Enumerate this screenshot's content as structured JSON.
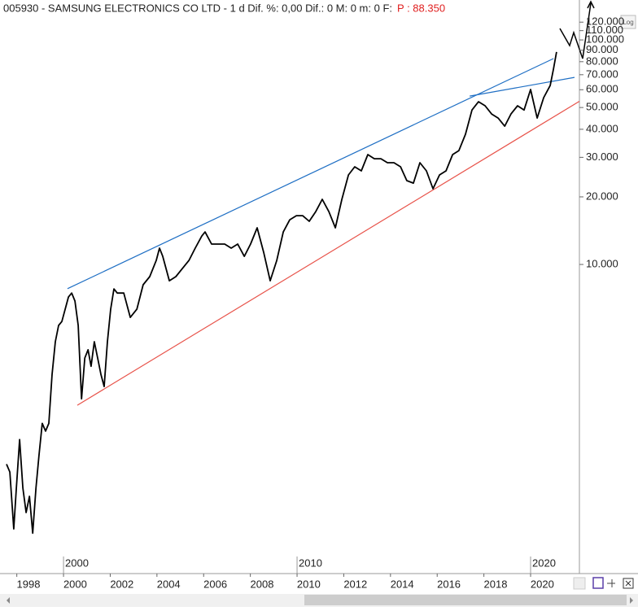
{
  "header": {
    "title": "005930 - SAMSUNG ELECTRONICS CO LTD -  1 d Dif. %: 0,00 Dif.: 0 M: 0 m: 0 F:",
    "price_label": "P : 88.350",
    "log_button": "Log"
  },
  "chart_data": {
    "type": "line",
    "log_scale": true,
    "grid": false,
    "xlim": [
      1997.28,
      2022.09
    ],
    "ylim": [
      420,
      150600
    ],
    "xticks": [
      1998,
      2000,
      2002,
      2004,
      2006,
      2008,
      2010,
      2012,
      2014,
      2016,
      2018,
      2020
    ],
    "decade_ticks": [
      2000,
      2010,
      2020
    ],
    "yticks": [
      {
        "value": 10000,
        "label": "10.000"
      },
      {
        "value": 20000,
        "label": "20.000"
      },
      {
        "value": 30000,
        "label": "30.000"
      },
      {
        "value": 40000,
        "label": "40.000"
      },
      {
        "value": 50000,
        "label": "50.000"
      },
      {
        "value": 60000,
        "label": "60.000"
      },
      {
        "value": 70000,
        "label": "70.000"
      },
      {
        "value": 80000,
        "label": "80.000"
      },
      {
        "value": 90000,
        "label": "90.000"
      },
      {
        "value": 100000,
        "label": "100.000"
      },
      {
        "value": 110000,
        "label": "110.000"
      },
      {
        "value": 120000,
        "label": "120.000"
      }
    ],
    "series": [
      {
        "color": "#000000",
        "x": [
          1997.56,
          1997.7,
          1997.87,
          1997.98,
          1998.12,
          1998.26,
          1998.4,
          1998.54,
          1998.68,
          1998.82,
          1998.95,
          1999.09,
          1999.23,
          1999.37,
          1999.51,
          1999.65,
          1999.79,
          1999.93,
          2000.07,
          2000.21,
          2000.35,
          2000.49,
          2000.63,
          2000.77,
          2000.91,
          2001.05,
          2001.18,
          2001.32,
          2001.46,
          2001.6,
          2001.74,
          2001.88,
          2002.02,
          2002.16,
          2002.3,
          2002.58,
          2002.86,
          2003.14,
          2003.41,
          2003.69,
          2003.97,
          2004.11,
          2004.25,
          2004.53,
          2004.81,
          2005.09,
          2005.37,
          2005.64,
          2005.92,
          2006.06,
          2006.34,
          2006.62,
          2006.9,
          2007.18,
          2007.46,
          2007.74,
          2008.01,
          2008.29,
          2008.57,
          2008.85,
          2009.13,
          2009.41,
          2009.69,
          2009.97,
          2010.24,
          2010.52,
          2010.8,
          2011.08,
          2011.36,
          2011.64,
          2011.92,
          2012.2,
          2012.47,
          2012.75,
          2013.03,
          2013.31,
          2013.59,
          2013.87,
          2014.15,
          2014.43,
          2014.7,
          2014.98,
          2015.26,
          2015.54,
          2015.82,
          2016.1,
          2016.38,
          2016.66,
          2016.93,
          2017.21,
          2017.49,
          2017.77,
          2018.05,
          2018.33,
          2018.61,
          2018.89,
          2019.16,
          2019.44,
          2019.72,
          2020.0,
          2020.28,
          2020.56,
          2020.84,
          2020.98,
          2021.11
        ],
        "values": [
          1290,
          1190,
          664,
          1010,
          1660,
          1010,
          785,
          927,
          636,
          1010,
          1410,
          1960,
          1810,
          1960,
          3240,
          4530,
          5350,
          5570,
          6320,
          7160,
          7460,
          6870,
          5350,
          2520,
          3830,
          4170,
          3520,
          4530,
          3830,
          3240,
          2860,
          4530,
          6320,
          7780,
          7460,
          7460,
          5810,
          6320,
          8120,
          8830,
          10420,
          11820,
          10870,
          8460,
          8830,
          9590,
          10420,
          11820,
          13390,
          13960,
          12320,
          12320,
          12320,
          11820,
          12320,
          10870,
          12320,
          14560,
          11330,
          8460,
          10420,
          13960,
          15820,
          16490,
          16490,
          15570,
          17200,
          19500,
          17200,
          14560,
          19500,
          25050,
          27220,
          26110,
          30850,
          29580,
          29580,
          28380,
          28380,
          27220,
          23620,
          23030,
          28380,
          26110,
          21730,
          25050,
          26110,
          30850,
          32140,
          38010,
          48750,
          53070,
          50900,
          46790,
          44870,
          41290,
          46790,
          50900,
          48750,
          60140,
          44870,
          55340,
          62680,
          74100,
          88350
        ]
      }
    ],
    "trendlines": [
      {
        "color": "#1f6fc4",
        "x": [
          2000.17,
          2020.98
        ],
        "y": [
          7800,
          82600
        ]
      },
      {
        "color": "#1f6fc4",
        "x": [
          2017.39,
          2021.88
        ],
        "y": [
          56200,
          68100
        ]
      },
      {
        "color": "#e8534a",
        "x": [
          2000.59,
          2022.09
        ],
        "y": [
          2360,
          53300
        ]
      }
    ]
  }
}
